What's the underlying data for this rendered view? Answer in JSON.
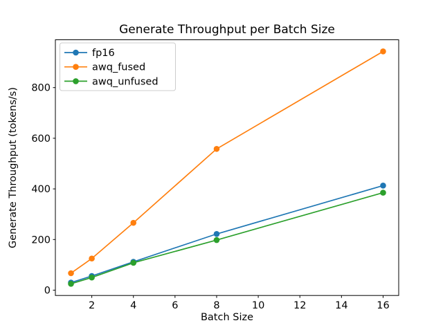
{
  "figure": {
    "background": "#ffffff"
  },
  "chart_data": {
    "type": "line",
    "title": "Generate Throughput per Batch Size",
    "xlabel": "Batch Size",
    "ylabel": "Generate Throughput (tokens/s)",
    "x": [
      1,
      2,
      4,
      8,
      16
    ],
    "series": [
      {
        "name": "fp16",
        "color": "#1f77b4",
        "values": [
          30,
          56,
          112,
          222,
          413
        ]
      },
      {
        "name": "awq_fused",
        "color": "#ff7f0e",
        "values": [
          67,
          125,
          266,
          558,
          943
        ]
      },
      {
        "name": "awq_unfused",
        "color": "#2ca02c",
        "values": [
          25,
          50,
          108,
          198,
          385
        ]
      }
    ],
    "xticks": [
      2,
      4,
      6,
      8,
      10,
      12,
      14,
      16
    ],
    "yticks": [
      0,
      200,
      400,
      600,
      800
    ],
    "xlim": [
      0.25,
      16.75
    ],
    "ylim": [
      -21,
      989
    ],
    "grid": false,
    "marker": "o",
    "line_width": 1.7,
    "marker_radius": 4.3,
    "legend_position": "upper-left",
    "axis_color": "#000000",
    "legend_border_color": "#cccccc",
    "legend_background": "#ffffff"
  }
}
